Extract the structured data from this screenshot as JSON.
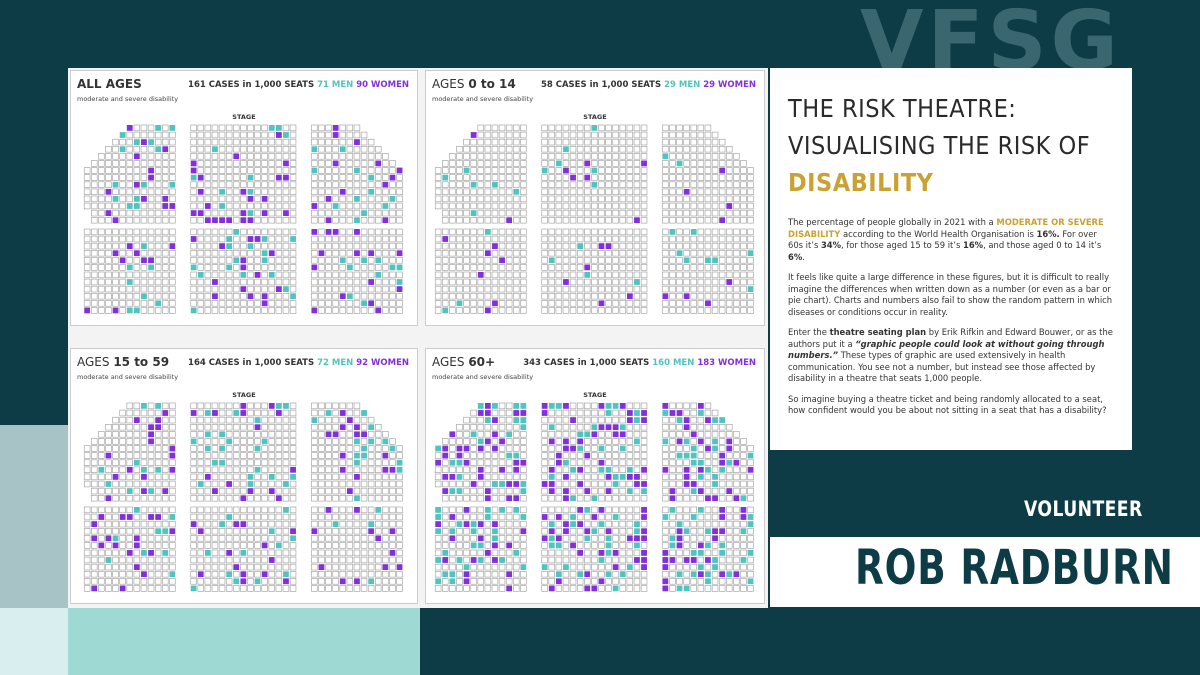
{
  "logo": "VFSG",
  "panels": [
    {
      "title": [
        {
          "text": "ALL AGES",
          "bold": true
        }
      ],
      "subtitle": "moderate and severe disability",
      "stage": "STAGE",
      "cases_label": "161 CASES in 1,000 SEATS",
      "men_label": "71 MEN",
      "women_label": "90 WOMEN",
      "men": 71,
      "women": 90
    },
    {
      "title": [
        {
          "text": "AGES "
        },
        {
          "text": "0 to 14",
          "bold": true
        }
      ],
      "subtitle": "moderate and severe disability",
      "stage": "STAGE",
      "cases_label": "58 CASES in 1,000 SEATS",
      "men_label": "29 MEN",
      "women_label": "29 WOMEN",
      "men": 29,
      "women": 29
    },
    {
      "title": [
        {
          "text": "AGES "
        },
        {
          "text": "15 to 59",
          "bold": true
        }
      ],
      "subtitle": "moderate and severe disability",
      "stage": "STAGE",
      "cases_label": "164 CASES in 1,000 SEATS",
      "men_label": "72 MEN",
      "women_label": "92 WOMEN",
      "men": 72,
      "women": 92
    },
    {
      "title": [
        {
          "text": "AGES "
        },
        {
          "text": "60+",
          "bold": true
        }
      ],
      "subtitle": "moderate and severe disability",
      "stage": "STAGE",
      "cases_label": "343 CASES in 1,000 SEATS",
      "men_label": "160 MEN",
      "women_label": "183 WOMEN",
      "men": 160,
      "women": 183
    }
  ],
  "colors": {
    "men": "#52c3bf",
    "women": "#8230d8",
    "accent": "#c9a233"
  },
  "article": {
    "title": [
      "THE RISK THEATRE:",
      "VISUALISING THE RISK OF",
      "DISABILITY"
    ],
    "paragraphs": [
      [
        {
          "text": "The percentage of people globally in 2021 with a "
        },
        {
          "text": "MODERATE OR SEVERE DISABILITY",
          "bold": true,
          "accent": true
        },
        {
          "text": " according to the World Health Organisation is "
        },
        {
          "text": "16%.",
          "bold": true
        },
        {
          "text": " For over 60s it’s "
        },
        {
          "text": "34%",
          "bold": true
        },
        {
          "text": ", for those aged 15 to 59 it’s "
        },
        {
          "text": "16%",
          "bold": true
        },
        {
          "text": ", and those aged 0 to 14 it’s "
        },
        {
          "text": "6%",
          "bold": true
        },
        {
          "text": "."
        }
      ],
      [
        {
          "text": "It feels like quite a large difference in these figures, but it is difficult to really imagine the differences when written down as a number (or even as a bar or pie chart). Charts and numbers also fail to show the random pattern in which diseases or conditions occur in reality."
        }
      ],
      [
        {
          "text": "Enter the "
        },
        {
          "text": "theatre seating plan",
          "bold": true
        },
        {
          "text": " by Erik Rifkin and Edward Bouwer, or as the authors put it a "
        },
        {
          "text": "“graphic people could look at without going through numbers.”",
          "bold": true,
          "italic": true
        },
        {
          "text": " These types of graphic are used extensively in health communication. You see not a number, but instead see those affected by disability in a theatre that seats 1,000 people."
        }
      ],
      [
        {
          "text": "So imagine buying a theatre ticket and being randomly allocated to a seat, how confident would you be about not sitting in a seat that has a disability?"
        }
      ]
    ]
  },
  "role": "VOLUNTEER",
  "name": "ROB RADBURN"
}
